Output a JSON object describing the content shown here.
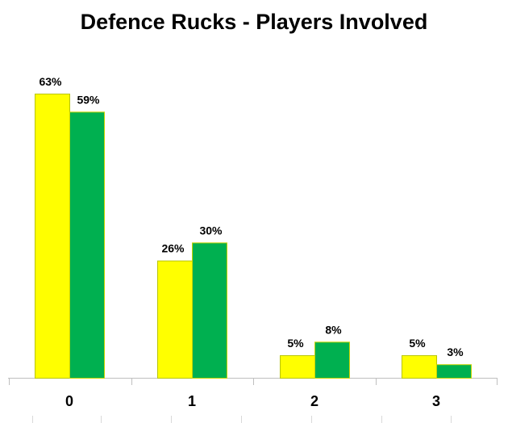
{
  "chart_data": {
    "type": "bar",
    "title": "Defence Rucks - Players Involved",
    "categories": [
      "0",
      "1",
      "2",
      "3"
    ],
    "series": [
      {
        "values": [
          63,
          26,
          5,
          5
        ],
        "labels": [
          "63%",
          "26%",
          "5%",
          "5%"
        ],
        "color": "#ffff00",
        "edge": "#b8c400"
      },
      {
        "values": [
          59,
          30,
          8,
          3
        ],
        "labels": [
          "59%",
          "30%",
          "8%",
          "3%"
        ],
        "color": "#00b050",
        "edge": "#c8d400"
      }
    ],
    "ylim": [
      0,
      63
    ],
    "grid": false,
    "legend": "none"
  }
}
